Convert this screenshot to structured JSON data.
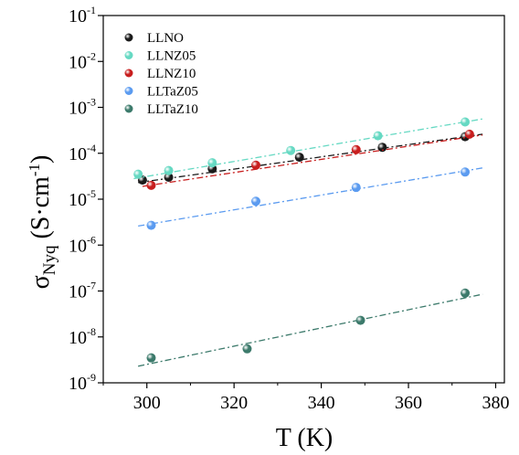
{
  "chart_data": {
    "type": "scatter",
    "xlabel": "T (K)",
    "ylabel_parts": {
      "sigma": "σ",
      "subscript": "Nyq",
      "unit_open": " (S·cm",
      "unit_exp": "-1",
      "unit_close": ")"
    },
    "ylabel": "σNyq (S·cm-1)",
    "y_scale": "log",
    "xlim": [
      290,
      382
    ],
    "ylim_exp": [
      -9,
      -1
    ],
    "x_ticks": [
      300,
      320,
      340,
      360,
      380
    ],
    "y_ticks": [
      {
        "base": "10",
        "exp": "-1",
        "power": -1
      },
      {
        "base": "10",
        "exp": "-2",
        "power": -2
      },
      {
        "base": "10",
        "exp": "-3",
        "power": -3
      },
      {
        "base": "10",
        "exp": "-4",
        "power": -4
      },
      {
        "base": "10",
        "exp": "-5",
        "power": -5
      },
      {
        "base": "10",
        "exp": "-6",
        "power": -6
      },
      {
        "base": "10",
        "exp": "-7",
        "power": -7
      },
      {
        "base": "10",
        "exp": "-8",
        "power": -8
      },
      {
        "base": "10",
        "exp": "-9",
        "power": -9
      }
    ],
    "grid": false,
    "legend": "top-left",
    "series": [
      {
        "name": "LLNO",
        "color": "#1a1a1a",
        "points": [
          [
            299,
            2.6e-05
          ],
          [
            305,
            3e-05
          ],
          [
            315,
            4.6e-05
          ],
          [
            335,
            8.2e-05
          ],
          [
            354,
            0.000135
          ],
          [
            373,
            0.00023
          ]
        ],
        "fit": [
          [
            298,
            2.3e-05
          ],
          [
            377,
            0.00026
          ]
        ]
      },
      {
        "name": "LLNZ05",
        "color": "#66d9c3",
        "points": [
          [
            298,
            3.5e-05
          ],
          [
            305,
            4.2e-05
          ],
          [
            315,
            6.2e-05
          ],
          [
            333,
            0.000115
          ],
          [
            353,
            0.00024
          ],
          [
            373,
            0.00048
          ]
        ],
        "fit": [
          [
            297,
            2.8e-05
          ],
          [
            377,
            0.00056
          ]
        ]
      },
      {
        "name": "LLNZ10",
        "color": "#c81e1e",
        "points": [
          [
            301,
            2e-05
          ],
          [
            325,
            5.5e-05
          ],
          [
            348,
            0.00012
          ],
          [
            374,
            0.00026
          ]
        ],
        "fit": [
          [
            299,
            1.9e-05
          ],
          [
            377,
            0.00025
          ]
        ]
      },
      {
        "name": "LLTaZ05",
        "color": "#5b9bf0",
        "points": [
          [
            301,
            2.7e-06
          ],
          [
            325,
            9e-06
          ],
          [
            348,
            1.8e-05
          ],
          [
            373,
            3.9e-05
          ]
        ],
        "fit": [
          [
            298,
            2.6e-06
          ],
          [
            377,
            4.8e-05
          ]
        ]
      },
      {
        "name": "LLTaZ10",
        "color": "#3c7a6b",
        "points": [
          [
            301,
            3.5e-09
          ],
          [
            323,
            5.5e-09
          ],
          [
            349,
            2.3e-08
          ],
          [
            373,
            9e-08
          ]
        ],
        "fit": [
          [
            298,
            2.3e-09
          ],
          [
            377,
            8.5e-08
          ]
        ]
      }
    ]
  }
}
